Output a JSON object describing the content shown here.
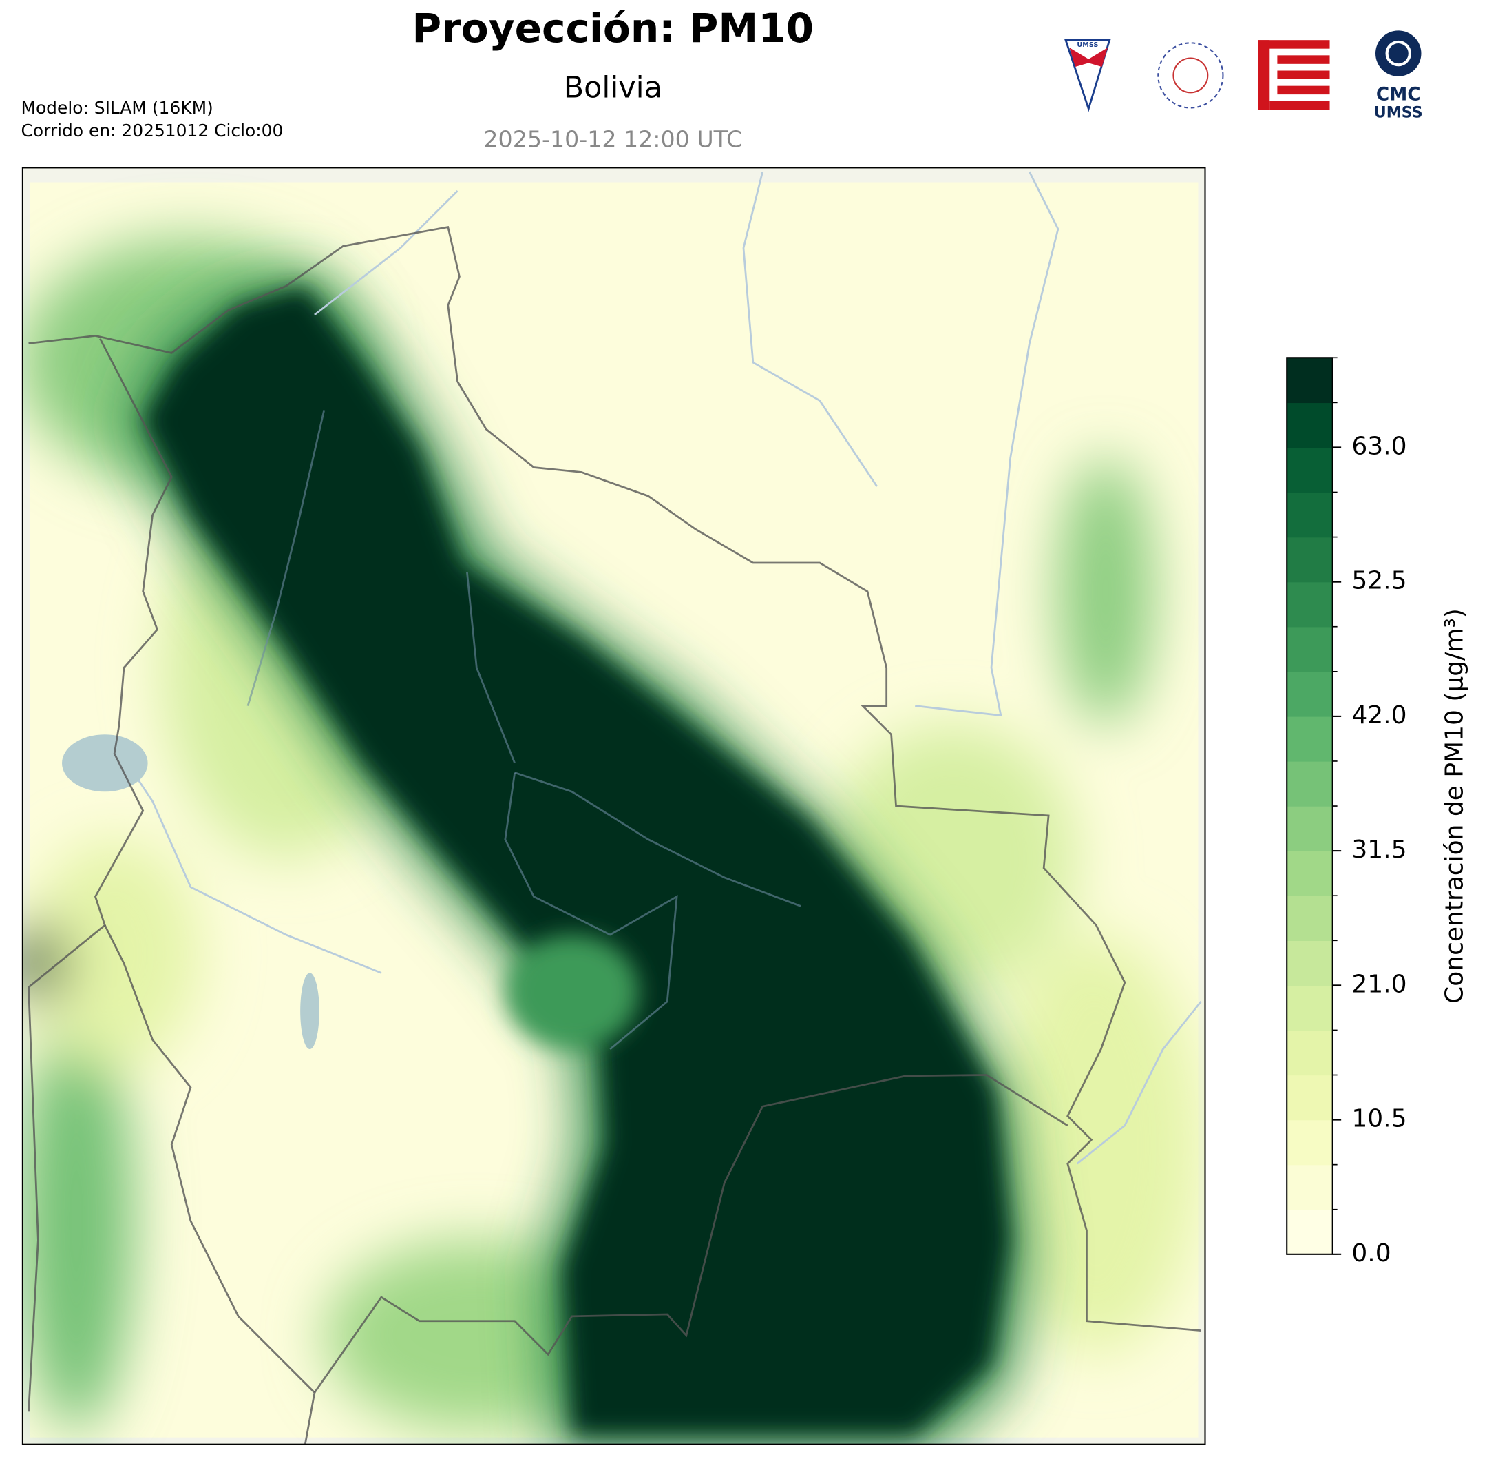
{
  "header": {
    "title": "Proyección: PM10",
    "subtitle": "Bolivia",
    "valid_time": "2025-10-12 12:00 UTC",
    "model": "Modelo: SILAM (16KM)",
    "run": "Corrido en: 20251012 Ciclo:00"
  },
  "logos": {
    "umss_badge": "UMSS",
    "cmc": "CMC",
    "cmc_sub": "UMSS"
  },
  "colorbar": {
    "label": "Concentración de PM10 (μg/m³)",
    "lim": [
      0,
      70
    ],
    "ticks": [
      {
        "value": 0,
        "label": "0.0"
      },
      {
        "value": 10.5,
        "label": "10.5"
      },
      {
        "value": 21,
        "label": "21.0"
      },
      {
        "value": 31.5,
        "label": "31.5"
      },
      {
        "value": 42,
        "label": "42.0"
      },
      {
        "value": 52.5,
        "label": "52.5"
      },
      {
        "value": 63,
        "label": "63.0"
      }
    ],
    "colors": [
      "#ffffe5",
      "#fbfdd5",
      "#f7fcc4",
      "#eef8b3",
      "#e4f4a9",
      "#d6efa2",
      "#c7e89b",
      "#b4e091",
      "#a1d888",
      "#8ccd80",
      "#76c277",
      "#61b76e",
      "#4ca864",
      "#3d9a59",
      "#2e8b4f",
      "#217c45",
      "#136e3d",
      "#085f35",
      "#004b2b",
      "#002e1f"
    ]
  }
}
